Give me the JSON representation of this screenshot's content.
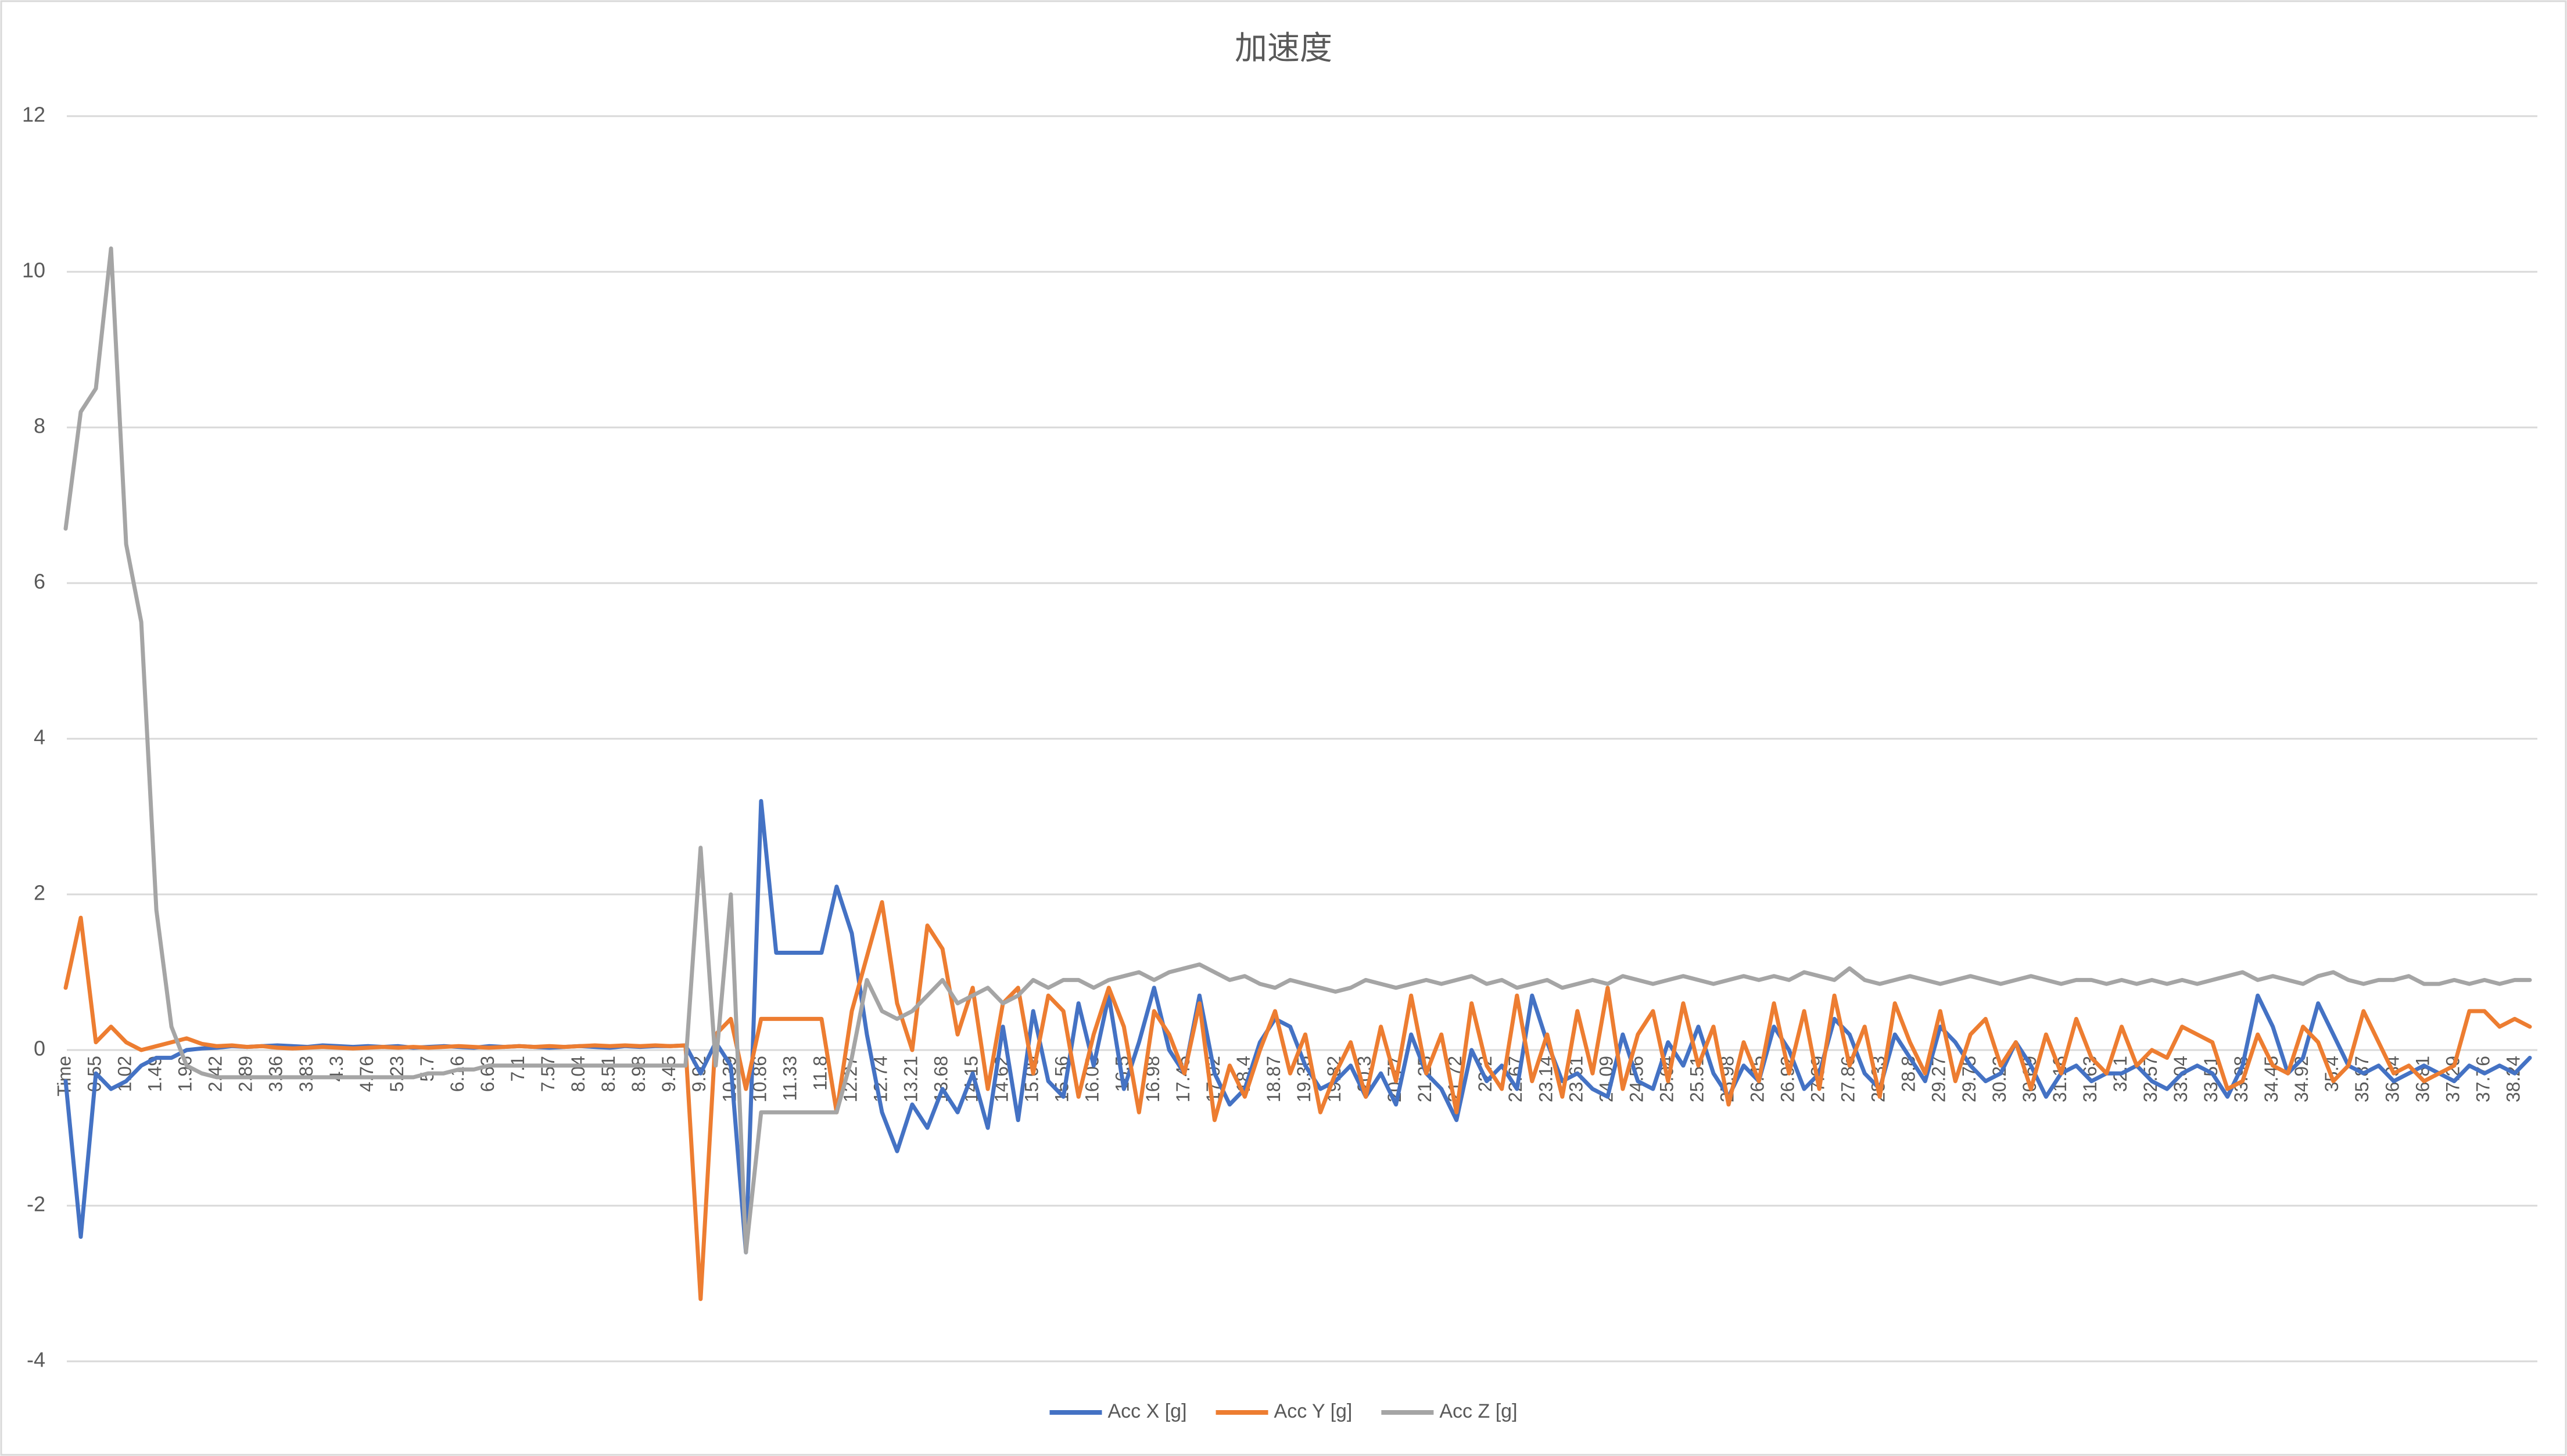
{
  "chart_data": {
    "type": "line",
    "title": "加速度",
    "categories": [
      "Time",
      null,
      "0.55",
      null,
      "1.02",
      null,
      "1.49",
      null,
      "1.96",
      null,
      "2.42",
      null,
      "2.89",
      null,
      "3.36",
      null,
      "3.83",
      null,
      "4.3",
      null,
      "4.76",
      null,
      "5.23",
      null,
      "5.7",
      null,
      "6.16",
      null,
      "6.63",
      null,
      "7.1",
      null,
      "7.57",
      null,
      "8.04",
      null,
      "8.51",
      null,
      "8.98",
      null,
      "9.45",
      null,
      "9.92",
      null,
      "10.39",
      null,
      "10.86",
      null,
      "11.33",
      null,
      "11.8",
      null,
      "12.27",
      null,
      "12.74",
      null,
      "13.21",
      null,
      "13.68",
      null,
      "14.15",
      null,
      "14.62",
      null,
      "15.09",
      null,
      "15.56",
      null,
      "16.03",
      null,
      "16.5",
      null,
      "16.98",
      null,
      "17.45",
      null,
      "17.92",
      null,
      "18.4",
      null,
      "18.87",
      null,
      "19.35",
      null,
      "19.82",
      null,
      "20.3",
      null,
      "20.77",
      null,
      "21.25",
      null,
      "21.72",
      null,
      "22.2",
      null,
      "22.67",
      null,
      "23.14",
      null,
      "23.61",
      null,
      "24.09",
      null,
      "24.56",
      null,
      "25.04",
      null,
      "25.51",
      null,
      "25.98",
      null,
      "26.45",
      null,
      "26.92",
      null,
      "27.39",
      null,
      "27.86",
      null,
      "28.33",
      null,
      "28.8",
      null,
      "29.27",
      null,
      "29.75",
      null,
      "30.22",
      null,
      "30.69",
      null,
      "31.16",
      null,
      "31.63",
      null,
      "32.1",
      null,
      "32.57",
      null,
      "33.04",
      null,
      "33.51",
      null,
      "33.98",
      null,
      "34.45",
      null,
      "34.92",
      null,
      "35.4",
      null,
      "35.87",
      null,
      "36.34",
      null,
      "36.81",
      null,
      "37.29",
      null,
      "37.76",
      null,
      "38.24",
      null
    ],
    "series": [
      {
        "name": "Acc X [g]",
        "color": "#4472c4",
        "values": [
          -0.4,
          -2.4,
          -0.3,
          -0.5,
          -0.4,
          -0.2,
          -0.1,
          -0.1,
          0.0,
          0.02,
          0.03,
          0.05,
          0.04,
          0.05,
          0.06,
          0.05,
          0.04,
          0.06,
          0.05,
          0.04,
          0.05,
          0.04,
          0.05,
          0.03,
          0.04,
          0.05,
          0.04,
          0.03,
          0.05,
          0.04,
          0.05,
          0.04,
          0.03,
          0.04,
          0.05,
          0.04,
          0.03,
          0.05,
          0.04,
          0.05,
          0.05,
          0.06,
          -0.3,
          0.1,
          -0.2,
          -2.6,
          3.2,
          1.25,
          1.25,
          1.25,
          1.25,
          2.1,
          1.5,
          0.2,
          -0.8,
          -1.3,
          -0.7,
          -1.0,
          -0.5,
          -0.8,
          -0.3,
          -1.0,
          0.3,
          -0.9,
          0.5,
          -0.4,
          -0.6,
          0.6,
          -0.2,
          0.7,
          -0.5,
          0.1,
          0.8,
          0.0,
          -0.3,
          0.7,
          -0.3,
          -0.7,
          -0.5,
          0.1,
          0.4,
          0.3,
          -0.2,
          -0.5,
          -0.4,
          -0.2,
          -0.6,
          -0.3,
          -0.7,
          0.2,
          -0.3,
          -0.5,
          -0.9,
          0.0,
          -0.4,
          -0.2,
          -0.5,
          0.7,
          0.1,
          -0.4,
          -0.3,
          -0.5,
          -0.6,
          0.2,
          -0.4,
          -0.5,
          0.1,
          -0.2,
          0.3,
          -0.3,
          -0.6,
          -0.2,
          -0.4,
          0.3,
          0.0,
          -0.5,
          -0.3,
          0.4,
          0.2,
          -0.3,
          -0.5,
          0.2,
          -0.1,
          -0.4,
          0.3,
          0.1,
          -0.2,
          -0.4,
          -0.3,
          0.1,
          -0.2,
          -0.6,
          -0.3,
          -0.2,
          -0.4,
          -0.3,
          -0.3,
          -0.2,
          -0.4,
          -0.5,
          -0.3,
          -0.2,
          -0.3,
          -0.6,
          -0.2,
          0.7,
          0.3,
          -0.3,
          -0.1,
          0.6,
          0.2,
          -0.2,
          -0.3,
          -0.2,
          -0.4,
          -0.3,
          -0.2,
          -0.3,
          -0.4,
          -0.2,
          -0.3,
          -0.2,
          -0.3,
          -0.1
        ]
      },
      {
        "name": "Acc Y [g]",
        "color": "#ed7d31",
        "values": [
          0.8,
          1.7,
          0.1,
          0.3,
          0.1,
          0.0,
          0.05,
          0.1,
          0.15,
          0.08,
          0.05,
          0.06,
          0.04,
          0.05,
          0.03,
          0.02,
          0.03,
          0.04,
          0.03,
          0.02,
          0.03,
          0.04,
          0.03,
          0.04,
          0.03,
          0.04,
          0.05,
          0.04,
          0.03,
          0.04,
          0.05,
          0.04,
          0.05,
          0.04,
          0.05,
          0.06,
          0.05,
          0.06,
          0.05,
          0.06,
          0.05,
          0.06,
          -3.2,
          0.2,
          0.4,
          -0.5,
          0.4,
          0.4,
          0.4,
          0.4,
          0.4,
          -0.8,
          0.5,
          1.2,
          1.9,
          0.6,
          0.0,
          1.6,
          1.3,
          0.2,
          0.8,
          -0.5,
          0.6,
          0.8,
          -0.3,
          0.7,
          0.5,
          -0.6,
          0.2,
          0.8,
          0.3,
          -0.8,
          0.5,
          0.2,
          -0.3,
          0.6,
          -0.9,
          -0.2,
          -0.6,
          0.0,
          0.5,
          -0.3,
          0.2,
          -0.8,
          -0.3,
          0.1,
          -0.6,
          0.3,
          -0.4,
          0.7,
          -0.3,
          0.2,
          -0.8,
          0.6,
          -0.2,
          -0.5,
          0.7,
          -0.4,
          0.2,
          -0.6,
          0.5,
          -0.3,
          0.8,
          -0.5,
          0.2,
          0.5,
          -0.4,
          0.6,
          -0.2,
          0.3,
          -0.7,
          0.1,
          -0.4,
          0.6,
          -0.3,
          0.5,
          -0.5,
          0.7,
          -0.2,
          0.3,
          -0.6,
          0.6,
          0.1,
          -0.3,
          0.5,
          -0.4,
          0.2,
          0.4,
          -0.2,
          0.1,
          -0.5,
          0.2,
          -0.3,
          0.4,
          -0.1,
          -0.3,
          0.3,
          -0.2,
          0.0,
          -0.1,
          0.3,
          0.2,
          0.1,
          -0.5,
          -0.4,
          0.2,
          -0.2,
          -0.3,
          0.3,
          0.1,
          -0.4,
          -0.2,
          0.5,
          0.1,
          -0.3,
          -0.2,
          -0.4,
          -0.3,
          -0.2,
          0.5,
          0.5,
          0.3,
          0.4,
          0.3
        ]
      },
      {
        "name": "Acc Z [g]",
        "color": "#a5a5a5",
        "values": [
          6.7,
          8.2,
          8.5,
          10.3,
          6.5,
          5.5,
          1.8,
          0.3,
          -0.2,
          -0.3,
          -0.35,
          -0.35,
          -0.35,
          -0.35,
          -0.35,
          -0.35,
          -0.35,
          -0.35,
          -0.35,
          -0.35,
          -0.35,
          -0.35,
          -0.35,
          -0.35,
          -0.3,
          -0.3,
          -0.25,
          -0.25,
          -0.2,
          -0.2,
          -0.2,
          -0.2,
          -0.2,
          -0.2,
          -0.2,
          -0.2,
          -0.2,
          -0.2,
          -0.2,
          -0.2,
          -0.2,
          -0.2,
          2.6,
          -0.2,
          2.0,
          -2.6,
          -0.8,
          -0.8,
          -0.8,
          -0.8,
          -0.8,
          -0.8,
          -0.1,
          0.9,
          0.5,
          0.4,
          0.5,
          0.7,
          0.9,
          0.6,
          0.7,
          0.8,
          0.6,
          0.7,
          0.9,
          0.8,
          0.9,
          0.9,
          0.8,
          0.9,
          0.95,
          1.0,
          0.9,
          1.0,
          1.05,
          1.1,
          1.0,
          0.9,
          0.95,
          0.85,
          0.8,
          0.9,
          0.85,
          0.8,
          0.75,
          0.8,
          0.9,
          0.85,
          0.8,
          0.85,
          0.9,
          0.85,
          0.9,
          0.95,
          0.85,
          0.9,
          0.8,
          0.85,
          0.9,
          0.8,
          0.85,
          0.9,
          0.85,
          0.95,
          0.9,
          0.85,
          0.9,
          0.95,
          0.9,
          0.85,
          0.9,
          0.95,
          0.9,
          0.95,
          0.9,
          1.0,
          0.95,
          0.9,
          1.05,
          0.9,
          0.85,
          0.9,
          0.95,
          0.9,
          0.85,
          0.9,
          0.95,
          0.9,
          0.85,
          0.9,
          0.95,
          0.9,
          0.85,
          0.9,
          0.9,
          0.85,
          0.9,
          0.85,
          0.9,
          0.85,
          0.9,
          0.85,
          0.9,
          0.95,
          1.0,
          0.9,
          0.95,
          0.9,
          0.85,
          0.95,
          1.0,
          0.9,
          0.85,
          0.9,
          0.9,
          0.95,
          0.85,
          0.85,
          0.9,
          0.85,
          0.9,
          0.85,
          0.9,
          0.9
        ]
      }
    ],
    "ylim": [
      -4,
      12
    ],
    "yticks": [
      -4,
      -2,
      0,
      2,
      4,
      6,
      8,
      10,
      12
    ],
    "grid": true,
    "legend": "bottom"
  }
}
